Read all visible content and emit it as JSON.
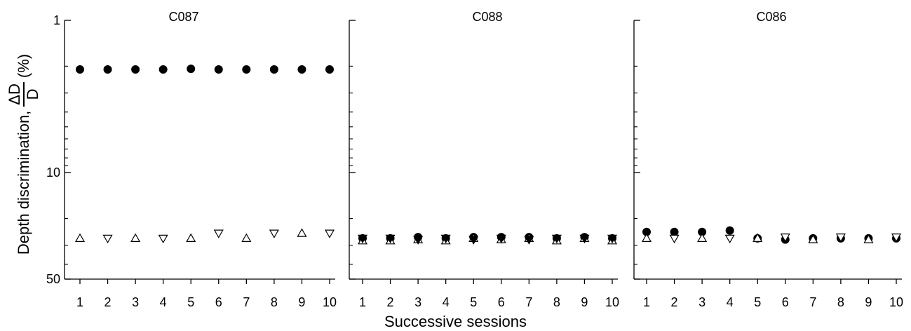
{
  "figure": {
    "ylabel": {
      "prefix": "Depth discrimination,",
      "frac_num": "ΔD",
      "frac_den": "D",
      "unit": "(%)"
    },
    "xlabel": "Successive sessions"
  },
  "chart_data": [
    {
      "type": "scatter",
      "title": "C087",
      "x": [
        1,
        2,
        3,
        4,
        5,
        6,
        7,
        8,
        9,
        10
      ],
      "xlim": [
        0.75,
        10.25
      ],
      "yscale": "log",
      "ylim": [
        1,
        50
      ],
      "yaxis_inverted": true,
      "ytick_labels": [
        "1",
        "10",
        "50"
      ],
      "yticks": [
        1,
        10,
        50
      ],
      "series": [
        {
          "marker": "filled-circle",
          "values": [
            2.1,
            2.1,
            2.1,
            2.1,
            2.08,
            2.1,
            2.1,
            2.1,
            2.1,
            2.1
          ]
        },
        {
          "marker": "open-triangle-up",
          "values": [
            27,
            null,
            27,
            null,
            27,
            null,
            27,
            null,
            25,
            null
          ]
        },
        {
          "marker": "open-triangle-down",
          "values": [
            null,
            27,
            null,
            27,
            null,
            25,
            null,
            25,
            null,
            25
          ]
        }
      ]
    },
    {
      "type": "scatter",
      "title": "C088",
      "x": [
        1,
        2,
        3,
        4,
        5,
        6,
        7,
        8,
        9,
        10
      ],
      "xlim": [
        0.75,
        10.25
      ],
      "yscale": "log",
      "ylim": [
        1,
        50
      ],
      "yaxis_inverted": true,
      "series": [
        {
          "marker": "filled-circle",
          "values": [
            27,
            27,
            26.5,
            27,
            26.5,
            26.5,
            26.5,
            27,
            26.5,
            27
          ]
        },
        {
          "marker": "open-triangle-up",
          "values": [
            28,
            28,
            27.5,
            28,
            27,
            27.5,
            27,
            28,
            27,
            28
          ]
        },
        {
          "marker": "filled-triangle-down",
          "values": [
            27,
            27,
            27.5,
            27,
            27.5,
            27,
            27.5,
            27,
            27,
            27
          ]
        }
      ]
    },
    {
      "type": "scatter",
      "title": "C086",
      "x": [
        1,
        2,
        3,
        4,
        5,
        6,
        7,
        8,
        9,
        10
      ],
      "xlim": [
        0.75,
        10.25
      ],
      "yscale": "log",
      "ylim": [
        1,
        50
      ],
      "yaxis_inverted": true,
      "series": [
        {
          "marker": "filled-circle",
          "values": [
            24.5,
            24.5,
            24.5,
            24,
            27,
            27.5,
            27,
            27,
            27,
            27
          ]
        },
        {
          "marker": "open-triangle-up",
          "values": [
            27,
            null,
            27,
            null,
            27,
            null,
            27.5,
            null,
            27.5,
            null
          ]
        },
        {
          "marker": "open-triangle-down",
          "values": [
            null,
            27,
            null,
            27,
            null,
            26.5,
            null,
            26.5,
            null,
            26.5
          ]
        }
      ]
    }
  ]
}
